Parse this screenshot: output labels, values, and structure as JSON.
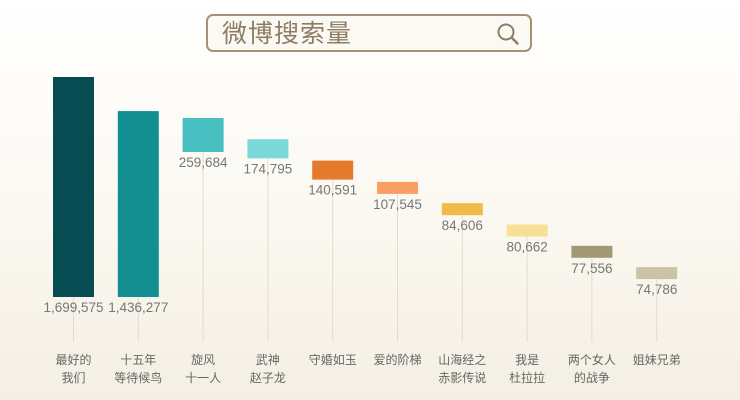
{
  "header": {
    "title": "微博搜索量",
    "icon": "search-icon"
  },
  "chart_data": {
    "type": "bar",
    "title": "微博搜索量",
    "categories": [
      [
        "最好的",
        "我们"
      ],
      [
        "十五年",
        "等待候鸟"
      ],
      [
        "旋风",
        "十一人"
      ],
      [
        "武神",
        "赵子龙"
      ],
      [
        "守婚如玉"
      ],
      [
        "爱的阶梯"
      ],
      [
        "山海经之",
        "赤影传说"
      ],
      [
        "我是",
        "杜拉拉"
      ],
      [
        "两个女人",
        "的战争"
      ],
      [
        "姐妹兄弟"
      ]
    ],
    "values": [
      1699575,
      1436277,
      259684,
      174795,
      140591,
      107545,
      84606,
      80662,
      77556,
      74786
    ],
    "value_labels": [
      "1,699,575",
      "1,436,277",
      "259,684",
      "174,795",
      "140,591",
      "107,545",
      "84,606",
      "80,662",
      "77,556",
      "74,786"
    ],
    "colors": [
      "#074c52",
      "#138f92",
      "#48bfc0",
      "#78d8da",
      "#e67a2c",
      "#fa9e62",
      "#f0bb49",
      "#f9df98",
      "#a09877",
      "#cbc3a7"
    ],
    "ylabel": "",
    "xlabel": "",
    "grid": false,
    "legend": "none"
  }
}
